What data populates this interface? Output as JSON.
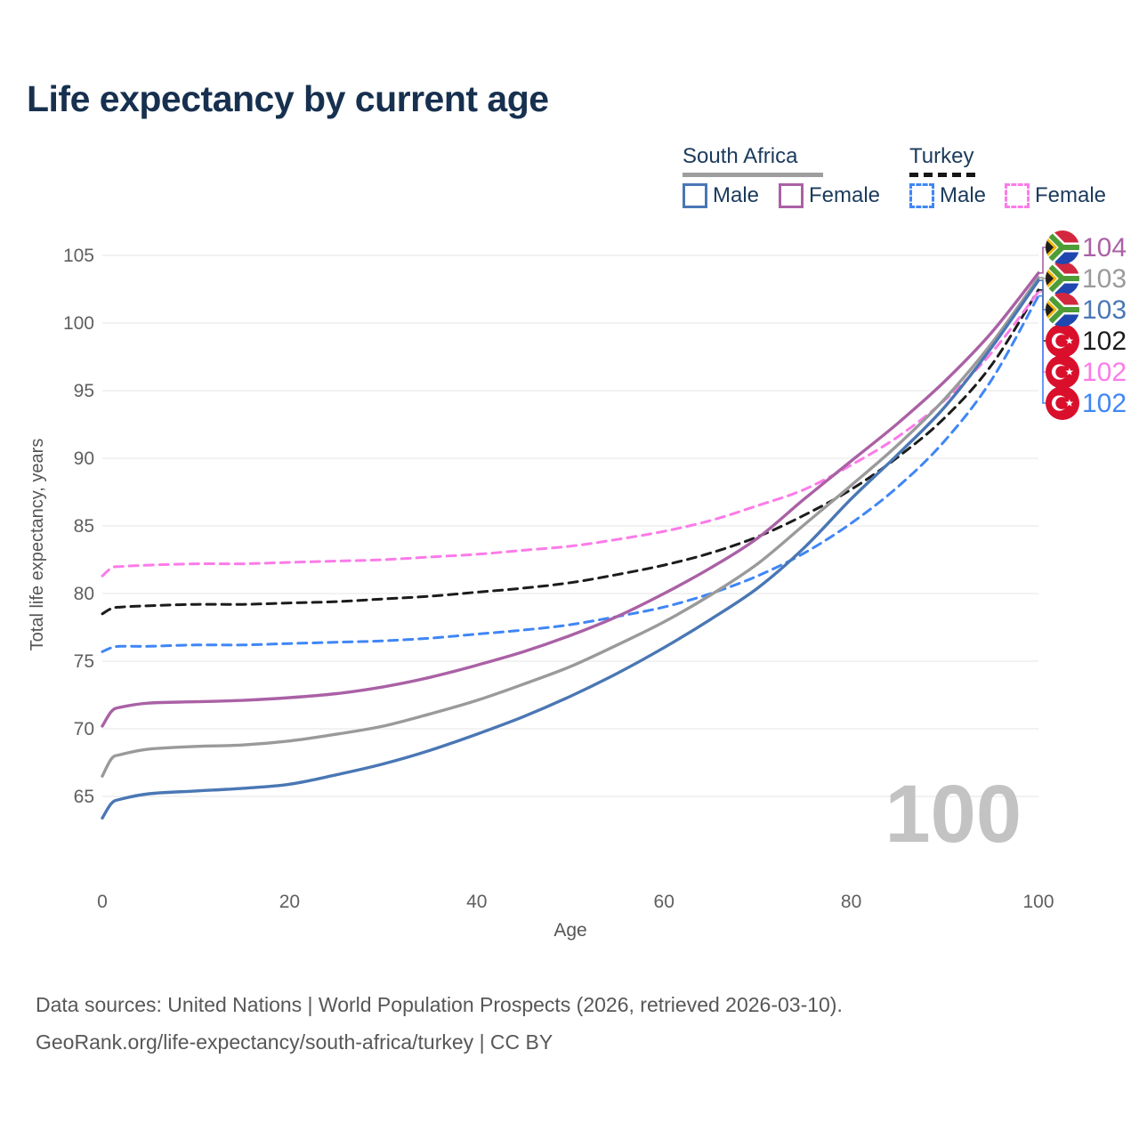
{
  "page": {
    "title": "Life expectancy by current age",
    "watermark": "100"
  },
  "legend": {
    "groups": [
      {
        "label": "South Africa",
        "dash": false,
        "underline_color": "#9e9e9e",
        "items": [
          {
            "label": "Male",
            "color": "#4a77b4",
            "dash": false
          },
          {
            "label": "Female",
            "color": "#aa61a5",
            "dash": false
          }
        ]
      },
      {
        "label": "Turkey",
        "dash": true,
        "underline_color": "#161616",
        "items": [
          {
            "label": "Male",
            "color": "#3f86f6",
            "dash": true
          },
          {
            "label": "Female",
            "color": "#fc7be8",
            "dash": true
          }
        ]
      }
    ]
  },
  "chart_data": {
    "type": "line",
    "title": "Life expectancy by current age",
    "xlabel": "Age",
    "ylabel": "Total life expectancy, years",
    "x_ticks": [
      0,
      20,
      40,
      60,
      80,
      100
    ],
    "y_ticks": [
      65,
      70,
      75,
      80,
      85,
      90,
      95,
      100,
      105
    ],
    "xlim": [
      0,
      100
    ],
    "ylim": [
      65,
      105
    ],
    "grid": "horizontal",
    "legend_position": "top-right",
    "x": [
      0,
      1,
      2,
      5,
      10,
      15,
      20,
      25,
      30,
      35,
      40,
      45,
      50,
      55,
      60,
      65,
      70,
      75,
      80,
      85,
      90,
      95,
      100
    ],
    "series": [
      {
        "name": "Turkey — Both sexes",
        "key": "turkey-both",
        "country": "Turkey",
        "color": "#1c1c1c",
        "dash": true,
        "flag": "turkey",
        "end_label": "102",
        "label_slot": 3,
        "values": [
          78.5,
          78.9,
          79.0,
          79.1,
          79.2,
          79.2,
          79.3,
          79.4,
          79.6,
          79.8,
          80.1,
          80.4,
          80.8,
          81.4,
          82.1,
          83.0,
          84.2,
          85.8,
          87.7,
          90.1,
          93.0,
          96.9,
          102.45
        ]
      },
      {
        "name": "Turkey — Female",
        "key": "turkey-female",
        "country": "Turkey",
        "color": "#fc7be8",
        "dash": true,
        "flag": "turkey",
        "end_label": "102",
        "label_slot": 4,
        "values": [
          81.3,
          81.9,
          82.0,
          82.1,
          82.2,
          82.2,
          82.3,
          82.4,
          82.5,
          82.7,
          82.9,
          83.2,
          83.5,
          84.0,
          84.6,
          85.4,
          86.5,
          87.7,
          89.5,
          91.6,
          94.3,
          97.8,
          102.3
        ]
      },
      {
        "name": "Turkey — Male",
        "key": "turkey-male",
        "country": "Turkey",
        "color": "#3f86f6",
        "dash": true,
        "flag": "turkey",
        "end_label": "102",
        "label_slot": 5,
        "values": [
          75.7,
          76.0,
          76.1,
          76.1,
          76.2,
          76.2,
          76.3,
          76.4,
          76.5,
          76.7,
          77.0,
          77.3,
          77.7,
          78.3,
          79.0,
          80.0,
          81.3,
          83.0,
          85.2,
          87.9,
          91.3,
          95.8,
          102.0
        ]
      },
      {
        "name": "South Africa — Both sexes",
        "key": "south-africa-both",
        "country": "South Africa",
        "color": "#9a9a9a",
        "dash": false,
        "flag": "south-africa",
        "end_label": "103",
        "label_slot": 1,
        "values": [
          66.5,
          67.8,
          68.1,
          68.5,
          68.7,
          68.8,
          69.1,
          69.6,
          70.2,
          71.1,
          72.1,
          73.3,
          74.6,
          76.2,
          77.9,
          79.9,
          82.2,
          85.1,
          88.0,
          91.0,
          94.4,
          98.5,
          103.35
        ]
      },
      {
        "name": "South Africa — Male",
        "key": "south-africa-male",
        "country": "South Africa",
        "color": "#4a77b4",
        "dash": false,
        "flag": "south-africa",
        "end_label": "103",
        "label_slot": 2,
        "values": [
          63.4,
          64.5,
          64.8,
          65.2,
          65.4,
          65.6,
          65.9,
          66.6,
          67.4,
          68.4,
          69.6,
          70.9,
          72.4,
          74.1,
          76.0,
          78.1,
          80.4,
          83.4,
          87.0,
          90.3,
          93.8,
          98.2,
          103.15
        ]
      },
      {
        "name": "South Africa — Female",
        "key": "south-africa-female",
        "country": "South Africa",
        "color": "#aa61a5",
        "dash": false,
        "flag": "south-africa",
        "end_label": "104",
        "label_slot": 0,
        "values": [
          70.2,
          71.3,
          71.6,
          71.9,
          72.0,
          72.1,
          72.3,
          72.6,
          73.1,
          73.8,
          74.7,
          75.7,
          76.9,
          78.3,
          80.0,
          81.9,
          84.1,
          87.0,
          89.8,
          92.6,
          95.7,
          99.3,
          103.7
        ]
      }
    ]
  },
  "colors": {
    "grid": "#ebebeb",
    "axis_text": "#5f5f5f",
    "axis_title": "#555555",
    "watermark": "#c3c3c3",
    "title_text": "#17304f"
  },
  "flags": {
    "south_africa": {
      "red": "#d3273e",
      "blue": "#1f47af",
      "green": "#4d9c35",
      "gold": "#f2b705",
      "black": "#1f1f1f",
      "white": "#ffffff"
    },
    "turkey": {
      "red": "#d90f2c",
      "white": "#ffffff"
    }
  },
  "footer": {
    "line1": "Data sources: United Nations | World Population Prospects (2026, retrieved 2026-03-10).",
    "line2": "GeoRank.org/life-expectancy/south-africa/turkey | CC BY"
  }
}
